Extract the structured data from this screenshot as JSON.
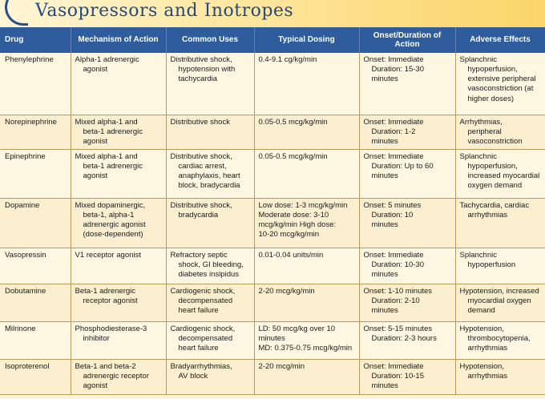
{
  "title": "Vasopressors and Inotropes",
  "headers": [
    "Drug",
    "Mechanism of Action",
    "Common Uses",
    "Typical Dosing",
    "Onset/Duration of Action",
    "Adverse Effects"
  ],
  "rows": [
    {
      "drug": "Phenylephrine",
      "mechanism": [
        "Alpha-1 adrenergic",
        "agonist"
      ],
      "uses": [
        "Distributive shock,",
        "hypotension with",
        "tachycardia"
      ],
      "dosing": [
        "0.4-9.1 cg/kg/min"
      ],
      "onset": [
        "Onset: Immediate",
        "Duration: 15-30",
        "minutes"
      ],
      "adverse": [
        "Splanchnic",
        "hypoperfusion,",
        "extensive peripheral",
        "vasoconstriction (at",
        "higher doses)"
      ]
    },
    {
      "drug": "Norepinephrine",
      "mechanism": [
        "Mixed alpha-1 and",
        "beta-1 adrenergic",
        "agonist"
      ],
      "uses": [
        "Distributive shock"
      ],
      "dosing": [
        "0.05-0.5 mcg/kg/min"
      ],
      "onset": [
        "Onset: Immediate",
        "Duration: 1-2",
        "minutes"
      ],
      "adverse": [
        "Arrhythmias,",
        "peripheral",
        "vasoconstriction"
      ]
    },
    {
      "drug": "Epinephrine",
      "mechanism": [
        "Mixed alpha-1 and",
        "beta-1 adrenergic",
        "agonist"
      ],
      "uses": [
        "Distributive shock,",
        "cardiac arrest,",
        "anaphylaxis, heart",
        "block, bradycardia"
      ],
      "dosing": [
        "0.05-0.5 mcg/kg/min"
      ],
      "onset": [
        "Onset: Immediate",
        "Duration: Up to 60",
        "minutes"
      ],
      "adverse": [
        "Splanchnic",
        "hypoperfusion,",
        "increased myocardial",
        "oxygen demand"
      ]
    },
    {
      "drug": "Dopamine",
      "mechanism": [
        "Mixed dopaminergic,",
        "beta-1, alpha-1",
        "adrenergic agonist",
        "(dose-dependent)"
      ],
      "uses": [
        "Distributive shock,",
        "bradycardia"
      ],
      "dosing": [
        "Low dose: 1-3 mcg/kg/min",
        "Moderate dose: 3-10",
        "mcg/kg/min High dose:",
        "10-20 mcg/kg/min"
      ],
      "onset": [
        "Onset: 5 minutes",
        "Duration: 10",
        "minutes"
      ],
      "adverse": [
        "Tachycardia, cardiac",
        "arrhythmias"
      ]
    },
    {
      "drug": "Vasopressin",
      "mechanism": [
        "V1 receptor agonist"
      ],
      "uses": [
        "Refractory septic",
        "shock, GI bleeding,",
        "diabetes insipidus"
      ],
      "dosing": [
        "0.01-0.04 units/min"
      ],
      "onset": [
        "Onset: Immediate",
        "Duration: 10-30",
        "minutes"
      ],
      "adverse": [
        "Splanchnic",
        "hypoperfusion"
      ]
    },
    {
      "drug": "Dobutamine",
      "mechanism": [
        "Beta-1 adrenergic",
        "receptor agonist"
      ],
      "uses": [
        "Cardiogenic shock,",
        "decompensated",
        "heart failure"
      ],
      "dosing": [
        "2-20 mcg/kg/min"
      ],
      "onset": [
        "Onset: 1-10 minutes",
        "Duration: 2-10",
        "minutes"
      ],
      "adverse": [
        "Hypotension, increased",
        "myocardial oxygen",
        "demand"
      ]
    },
    {
      "drug": "Milrinone",
      "mechanism": [
        "Phosphodiesterase-3",
        "inhibitor"
      ],
      "uses": [
        "Cardiogenic shock,",
        "decompensated",
        "heart failure"
      ],
      "dosing": [
        "LD: 50 mcg/kg over 10",
        "minutes",
        "MD: 0.375-0.75 mcg/kg/min"
      ],
      "onset": [
        "Onset: 5-15 minutes",
        "Duration: 2-3 hours"
      ],
      "adverse": [
        "Hypotension,",
        "thrombocytopenia,",
        "arrhythmias"
      ]
    },
    {
      "drug": "Isoproterenol",
      "mechanism": [
        "Beta-1 and beta-2",
        "adrenergic receptor",
        "agonist"
      ],
      "uses": [
        "Bradyarrhythmias,",
        "AV block"
      ],
      "dosing": [
        "2-20 mcg/min"
      ],
      "onset": [
        "Onset: Immediate",
        "Duration: 10-15",
        "minutes"
      ],
      "adverse": [
        "Hypotension,",
        "arrhythmias"
      ]
    }
  ]
}
